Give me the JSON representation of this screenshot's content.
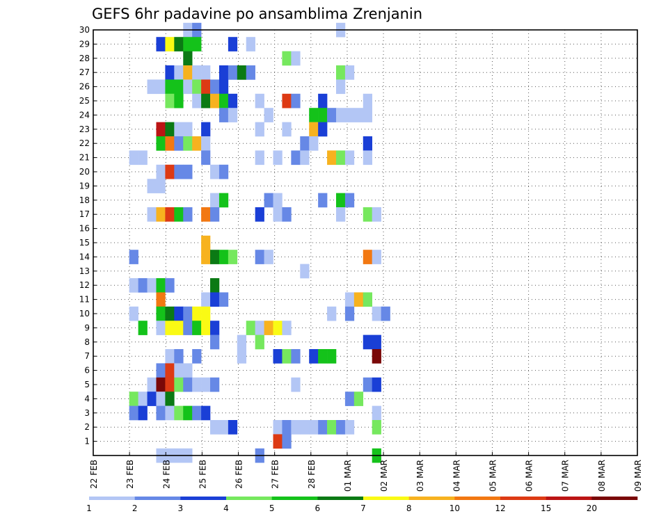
{
  "chart_data": {
    "type": "heatmap",
    "title": "GEFS 6hr padavine po ansamblima Zrenjanin",
    "xlabel": "",
    "ylabel": "",
    "x_tick_labels": [
      "22 FEB",
      "23 FEB",
      "24 FEB",
      "25 FEB",
      "26 FEB",
      "27 FEB",
      "28 FEB",
      "01 MAR",
      "02 MAR",
      "03 MAR",
      "04 MAR",
      "05 MAR",
      "06 MAR",
      "07 MAR",
      "08 MAR",
      "09 MAR"
    ],
    "y_tick_labels": [
      "1",
      "2",
      "3",
      "4",
      "5",
      "6",
      "7",
      "8",
      "9",
      "10",
      "11",
      "12",
      "13",
      "14",
      "15",
      "16",
      "17",
      "18",
      "19",
      "20",
      "21",
      "22",
      "23",
      "24",
      "25",
      "26",
      "27",
      "28",
      "29",
      "30"
    ],
    "x_range_days": [
      0,
      15
    ],
    "y_range": [
      0,
      30
    ],
    "steps_per_day": 4,
    "grid": true,
    "colorbar": {
      "position": "bottom",
      "labels": [
        "1",
        "2",
        "3",
        "4",
        "5",
        "6",
        "7",
        "8",
        "10",
        "12",
        "15",
        "20"
      ],
      "colors": [
        "#b3c6f5",
        "#6688e6",
        "#1a3fd6",
        "#76e85e",
        "#14c21a",
        "#0b7a14",
        "#fafa14",
        "#f7b21f",
        "#f27812",
        "#dd3a14",
        "#bb1414",
        "#7a0808"
      ]
    },
    "cells": [
      [
        30,
        10,
        0
      ],
      [
        30,
        11,
        1
      ],
      [
        30,
        27,
        0
      ],
      [
        29,
        7,
        2
      ],
      [
        29,
        8,
        6
      ],
      [
        29,
        9,
        5
      ],
      [
        29,
        10,
        4
      ],
      [
        29,
        11,
        4
      ],
      [
        29,
        15,
        2
      ],
      [
        29,
        17,
        0
      ],
      [
        28,
        10,
        5
      ],
      [
        28,
        21,
        3
      ],
      [
        28,
        22,
        0
      ],
      [
        27,
        8,
        2
      ],
      [
        27,
        9,
        0
      ],
      [
        27,
        10,
        7
      ],
      [
        27,
        11,
        0
      ],
      [
        27,
        12,
        0
      ],
      [
        27,
        14,
        2
      ],
      [
        27,
        15,
        1
      ],
      [
        27,
        16,
        5
      ],
      [
        27,
        17,
        1
      ],
      [
        27,
        27,
        3
      ],
      [
        27,
        28,
        0
      ],
      [
        26,
        6,
        0
      ],
      [
        26,
        7,
        0
      ],
      [
        26,
        8,
        4
      ],
      [
        26,
        9,
        4
      ],
      [
        26,
        10,
        0
      ],
      [
        26,
        11,
        3
      ],
      [
        26,
        12,
        9
      ],
      [
        26,
        13,
        1
      ],
      [
        26,
        14,
        2
      ],
      [
        26,
        27,
        0
      ],
      [
        25,
        8,
        3
      ],
      [
        25,
        9,
        4
      ],
      [
        25,
        11,
        0
      ],
      [
        25,
        12,
        5
      ],
      [
        25,
        13,
        7
      ],
      [
        25,
        14,
        4
      ],
      [
        25,
        15,
        2
      ],
      [
        25,
        18,
        0
      ],
      [
        25,
        21,
        9
      ],
      [
        25,
        22,
        1
      ],
      [
        25,
        25,
        2
      ],
      [
        25,
        30,
        0
      ],
      [
        24,
        14,
        1
      ],
      [
        24,
        15,
        0
      ],
      [
        24,
        19,
        0
      ],
      [
        24,
        24,
        4
      ],
      [
        24,
        25,
        4
      ],
      [
        24,
        26,
        1
      ],
      [
        24,
        27,
        0
      ],
      [
        24,
        28,
        0
      ],
      [
        24,
        29,
        0
      ],
      [
        24,
        30,
        0
      ],
      [
        23,
        7,
        10
      ],
      [
        23,
        8,
        5
      ],
      [
        23,
        9,
        0
      ],
      [
        23,
        10,
        0
      ],
      [
        23,
        12,
        2
      ],
      [
        23,
        18,
        0
      ],
      [
        23,
        21,
        0
      ],
      [
        23,
        24,
        7
      ],
      [
        23,
        25,
        2
      ],
      [
        22,
        7,
        4
      ],
      [
        22,
        8,
        8
      ],
      [
        22,
        9,
        1
      ],
      [
        22,
        10,
        3
      ],
      [
        22,
        11,
        7
      ],
      [
        22,
        12,
        0
      ],
      [
        22,
        23,
        1
      ],
      [
        22,
        24,
        0
      ],
      [
        22,
        30,
        2
      ],
      [
        21,
        4,
        0
      ],
      [
        21,
        5,
        0
      ],
      [
        21,
        12,
        1
      ],
      [
        21,
        18,
        0
      ],
      [
        21,
        20,
        0
      ],
      [
        21,
        22,
        1
      ],
      [
        21,
        23,
        0
      ],
      [
        21,
        26,
        7
      ],
      [
        21,
        27,
        3
      ],
      [
        21,
        28,
        0
      ],
      [
        21,
        30,
        0
      ],
      [
        20,
        7,
        0
      ],
      [
        20,
        8,
        9
      ],
      [
        20,
        9,
        1
      ],
      [
        20,
        10,
        1
      ],
      [
        20,
        13,
        0
      ],
      [
        20,
        14,
        1
      ],
      [
        19,
        6,
        0
      ],
      [
        19,
        7,
        0
      ],
      [
        18,
        13,
        0
      ],
      [
        18,
        14,
        4
      ],
      [
        18,
        19,
        1
      ],
      [
        18,
        20,
        0
      ],
      [
        18,
        25,
        1
      ],
      [
        18,
        27,
        4
      ],
      [
        18,
        28,
        1
      ],
      [
        17,
        6,
        0
      ],
      [
        17,
        7,
        7
      ],
      [
        17,
        8,
        9
      ],
      [
        17,
        9,
        4
      ],
      [
        17,
        10,
        1
      ],
      [
        17,
        12,
        8
      ],
      [
        17,
        13,
        1
      ],
      [
        17,
        18,
        2
      ],
      [
        17,
        20,
        0
      ],
      [
        17,
        21,
        1
      ],
      [
        17,
        27,
        0
      ],
      [
        17,
        30,
        3
      ],
      [
        17,
        31,
        0
      ],
      [
        15,
        12,
        7
      ],
      [
        14,
        4,
        1
      ],
      [
        14,
        12,
        7
      ],
      [
        14,
        13,
        5
      ],
      [
        14,
        14,
        4
      ],
      [
        14,
        15,
        3
      ],
      [
        14,
        18,
        1
      ],
      [
        14,
        19,
        0
      ],
      [
        14,
        30,
        8
      ],
      [
        14,
        31,
        0
      ],
      [
        13,
        23,
        0
      ],
      [
        12,
        4,
        0
      ],
      [
        12,
        5,
        1
      ],
      [
        12,
        6,
        0
      ],
      [
        12,
        7,
        4
      ],
      [
        12,
        8,
        1
      ],
      [
        12,
        13,
        5
      ],
      [
        11,
        7,
        8
      ],
      [
        11,
        12,
        0
      ],
      [
        11,
        13,
        2
      ],
      [
        11,
        14,
        1
      ],
      [
        11,
        28,
        0
      ],
      [
        11,
        29,
        7
      ],
      [
        11,
        30,
        3
      ],
      [
        10,
        4,
        0
      ],
      [
        10,
        7,
        4
      ],
      [
        10,
        8,
        5
      ],
      [
        10,
        9,
        2
      ],
      [
        10,
        10,
        1
      ],
      [
        10,
        11,
        6
      ],
      [
        10,
        12,
        6
      ],
      [
        10,
        26,
        0
      ],
      [
        10,
        28,
        1
      ],
      [
        10,
        31,
        0
      ],
      [
        10,
        32,
        1
      ],
      [
        9,
        5,
        4
      ],
      [
        9,
        7,
        0
      ],
      [
        9,
        8,
        6
      ],
      [
        9,
        9,
        6
      ],
      [
        9,
        10,
        1
      ],
      [
        9,
        11,
        4
      ],
      [
        9,
        12,
        6
      ],
      [
        9,
        13,
        2
      ],
      [
        9,
        17,
        3
      ],
      [
        9,
        18,
        0
      ],
      [
        9,
        19,
        7
      ],
      [
        9,
        20,
        6
      ],
      [
        9,
        21,
        0
      ],
      [
        8,
        13,
        1
      ],
      [
        8,
        16,
        0
      ],
      [
        8,
        18,
        3
      ],
      [
        8,
        30,
        2
      ],
      [
        8,
        31,
        2
      ],
      [
        7,
        8,
        0
      ],
      [
        7,
        9,
        1
      ],
      [
        7,
        11,
        1
      ],
      [
        7,
        16,
        0
      ],
      [
        7,
        20,
        2
      ],
      [
        7,
        21,
        3
      ],
      [
        7,
        22,
        1
      ],
      [
        7,
        24,
        2
      ],
      [
        7,
        25,
        4
      ],
      [
        7,
        26,
        4
      ],
      [
        7,
        31,
        11
      ],
      [
        6,
        7,
        1
      ],
      [
        6,
        8,
        9
      ],
      [
        6,
        9,
        0
      ],
      [
        6,
        10,
        0
      ],
      [
        5,
        6,
        0
      ],
      [
        5,
        7,
        11
      ],
      [
        5,
        8,
        9
      ],
      [
        5,
        9,
        3
      ],
      [
        5,
        10,
        1
      ],
      [
        5,
        11,
        0
      ],
      [
        5,
        12,
        0
      ],
      [
        5,
        13,
        1
      ],
      [
        5,
        22,
        0
      ],
      [
        5,
        30,
        1
      ],
      [
        5,
        31,
        2
      ],
      [
        4,
        4,
        3
      ],
      [
        4,
        5,
        0
      ],
      [
        4,
        6,
        2
      ],
      [
        4,
        7,
        0
      ],
      [
        4,
        8,
        5
      ],
      [
        4,
        28,
        1
      ],
      [
        4,
        29,
        3
      ],
      [
        3,
        4,
        1
      ],
      [
        3,
        5,
        2
      ],
      [
        3,
        7,
        1
      ],
      [
        3,
        8,
        0
      ],
      [
        3,
        9,
        3
      ],
      [
        3,
        10,
        4
      ],
      [
        3,
        11,
        1
      ],
      [
        3,
        12,
        2
      ],
      [
        3,
        31,
        0
      ],
      [
        2,
        13,
        0
      ],
      [
        2,
        14,
        0
      ],
      [
        2,
        15,
        2
      ],
      [
        2,
        20,
        0
      ],
      [
        2,
        21,
        1
      ],
      [
        2,
        22,
        0
      ],
      [
        2,
        23,
        0
      ],
      [
        2,
        24,
        0
      ],
      [
        2,
        25,
        1
      ],
      [
        2,
        26,
        3
      ],
      [
        2,
        27,
        1
      ],
      [
        2,
        28,
        0
      ],
      [
        2,
        31,
        3
      ],
      [
        1,
        20,
        9
      ],
      [
        1,
        21,
        1
      ],
      [
        0,
        7,
        0
      ],
      [
        0,
        8,
        0
      ],
      [
        0,
        9,
        0
      ],
      [
        0,
        10,
        0
      ],
      [
        0,
        18,
        1
      ],
      [
        0,
        31,
        4
      ]
    ]
  }
}
